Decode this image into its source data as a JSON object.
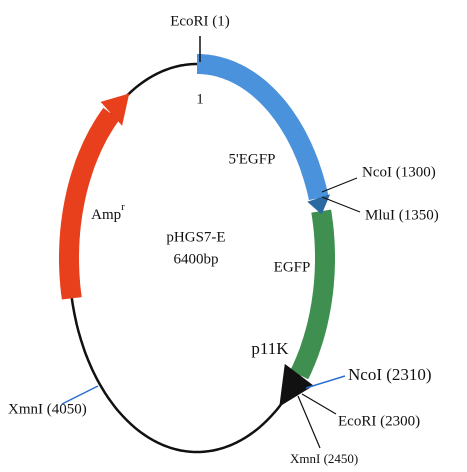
{
  "plasmid": {
    "name": "pHGS7-E",
    "size": "6400bp"
  },
  "origin_label": "1",
  "features": [
    {
      "label": "5'EGFP"
    },
    {
      "label": "EGFP"
    },
    {
      "label": "Amp",
      "superscript": "r"
    },
    {
      "label": "p11K"
    }
  ],
  "sites": [
    "EcoRI (1)",
    "NcoI (1300)",
    "MluI (1350)",
    "NcoI (2310)",
    "EcoRI (2300)",
    "XmnI (2450)",
    "XmnI (4050)"
  ]
}
